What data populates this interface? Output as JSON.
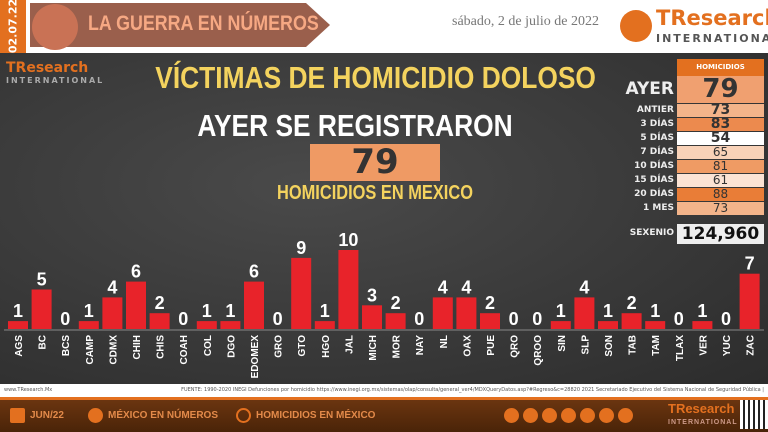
{
  "header": {
    "date_badge": "02.07.22",
    "title": "LA GUERRA EN NÚMEROS",
    "date": "sábado, 2 de julio de 2022",
    "logo_text": "TResearch",
    "logo_sub": "INTERNATIONAL"
  },
  "watermark": {
    "text": "TResearch",
    "sub": "INTERNATIONAL"
  },
  "headline": {
    "line1": "VÍCTIMAS DE HOMICIDIO DOLOSO",
    "line2": "AYER SE REGISTRARON",
    "value": "79",
    "line3": "HOMICIDIOS EN MEXICO"
  },
  "table": {
    "header": "HOMICIDIOS",
    "rows": [
      {
        "label": "AYER",
        "value": "79",
        "color": "#f0a070"
      },
      {
        "label": "ANTIER",
        "value": "73",
        "color": "#f3b48a"
      },
      {
        "label": "3 DÍAS",
        "value": "83",
        "color": "#ec8a4e"
      },
      {
        "label": "5 DÍAS",
        "value": "54",
        "color": "#ffffff"
      },
      {
        "label": "7 DÍAS",
        "value": "65",
        "color": "#f8d2b8"
      },
      {
        "label": "10 DÍAS",
        "value": "81",
        "color": "#ef9b64"
      },
      {
        "label": "15 DÍAS",
        "value": "61",
        "color": "#fbe3d4"
      },
      {
        "label": "20 DÍAS",
        "value": "88",
        "color": "#e97d37"
      },
      {
        "label": "1 MES",
        "value": "73",
        "color": "#f3b48a"
      }
    ],
    "sexenio_label": "SEXENIO",
    "sexenio_value": "124,960"
  },
  "chart_data": {
    "type": "bar",
    "title": "",
    "xlabel": "",
    "ylabel": "",
    "ylim": [
      0,
      10
    ],
    "grid": false,
    "bar_color": "#e8232a",
    "categories": [
      "AGS",
      "BC",
      "BCS",
      "CAMP",
      "CDMX",
      "CHIH",
      "CHIS",
      "COAH",
      "COL",
      "DGO",
      "EDOMEX",
      "GRO",
      "GTO",
      "HGO",
      "JAL",
      "MICH",
      "MOR",
      "NAY",
      "NL",
      "OAX",
      "PUE",
      "QRO",
      "QROO",
      "SIN",
      "SLP",
      "SON",
      "TAB",
      "TAM",
      "TLAX",
      "VER",
      "YUC",
      "ZAC"
    ],
    "values": [
      1,
      5,
      0,
      1,
      4,
      6,
      2,
      0,
      1,
      1,
      6,
      0,
      9,
      1,
      10,
      3,
      2,
      0,
      4,
      4,
      2,
      0,
      0,
      1,
      4,
      1,
      2,
      1,
      0,
      1,
      0,
      7
    ]
  },
  "footer": {
    "website": "www.TResearch.Mx",
    "source": "FUENTE: 1990-2020 INEGI Defunciones por homicidio https://www.inegi.org.mx/sistemas/olap/consulta/general_ver4/MDXQueryDatos.asp?#Regreso&c=28820  2021 Secretariado Ejecutivo del Sistema Nacional de Seguridad Pública |",
    "period": "JUN/22",
    "link1": "MÉXICO EN NÚMEROS",
    "link2": "HOMICIDIOS EN MÉXICO"
  }
}
